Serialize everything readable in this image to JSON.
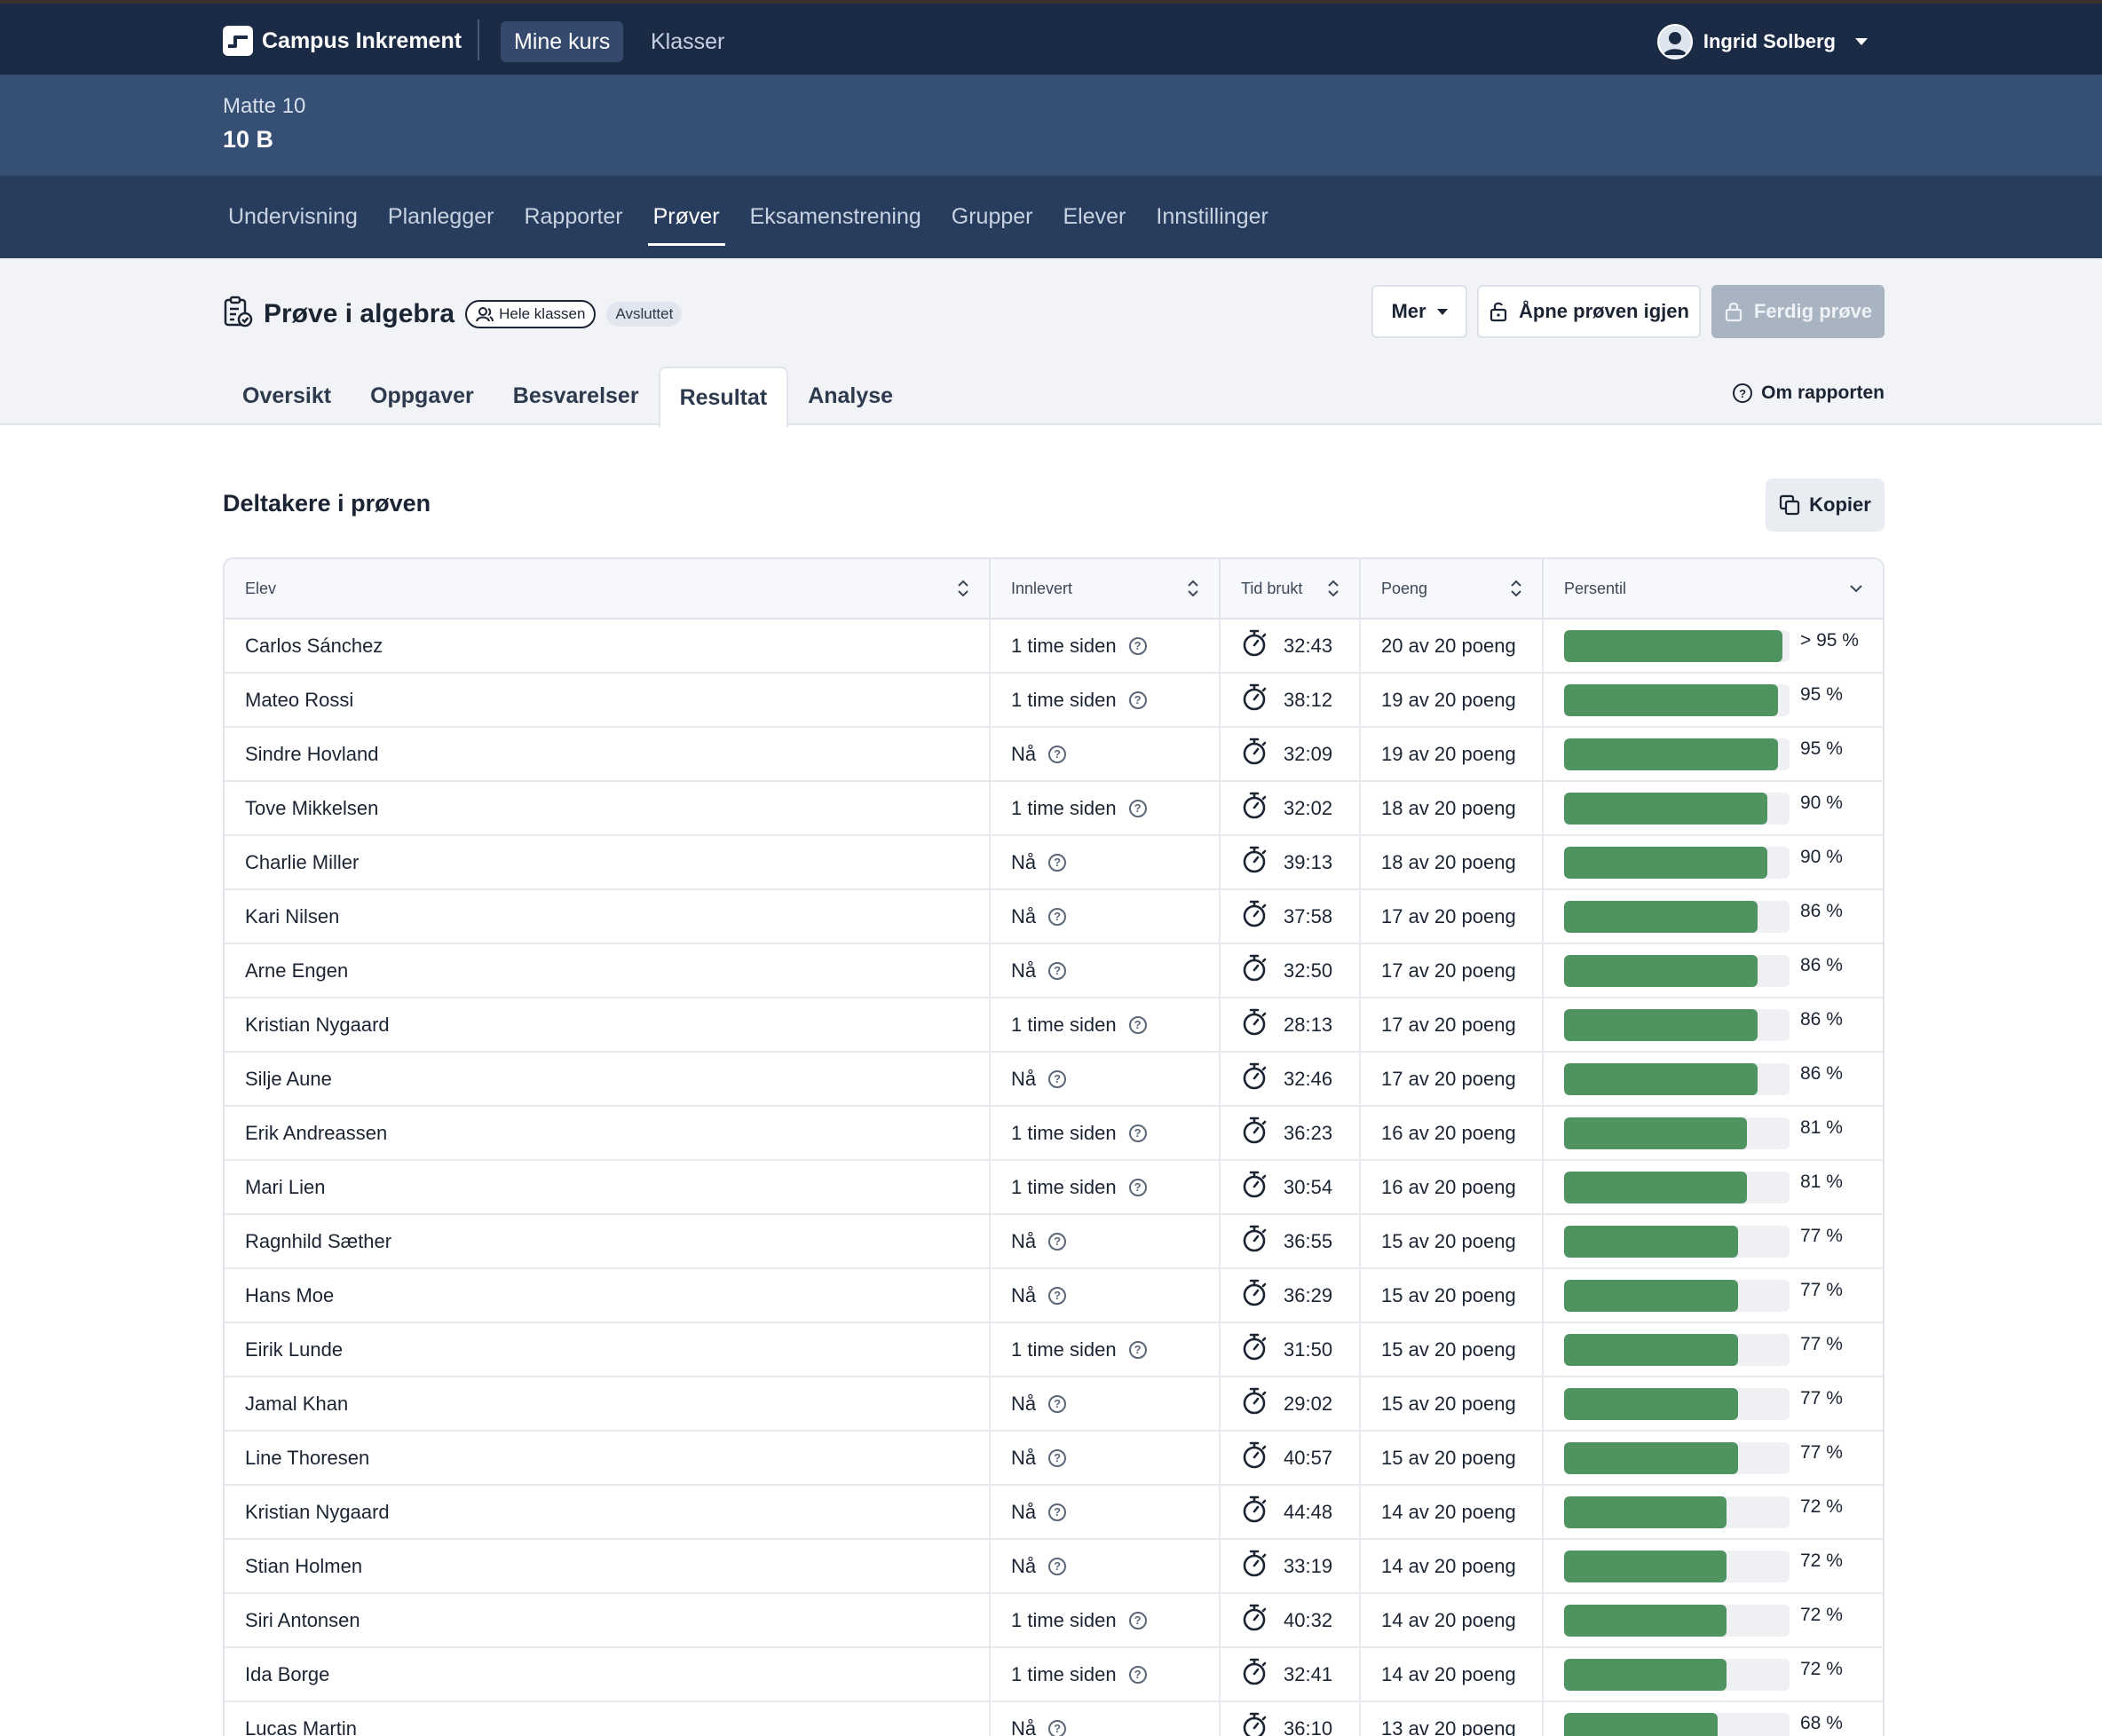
{
  "topbar": {
    "brand": "Campus Inkrement",
    "nav": [
      {
        "label": "Mine kurs",
        "active": true
      },
      {
        "label": "Klasser",
        "active": false
      }
    ],
    "user": "Ingrid Solberg"
  },
  "course": {
    "subject": "Matte 10",
    "class": "10 B"
  },
  "subnav": [
    {
      "label": "Undervisning",
      "active": false
    },
    {
      "label": "Planlegger",
      "active": false
    },
    {
      "label": "Rapporter",
      "active": false
    },
    {
      "label": "Prøver",
      "active": true
    },
    {
      "label": "Eksamenstrening",
      "active": false
    },
    {
      "label": "Grupper",
      "active": false
    },
    {
      "label": "Elever",
      "active": false
    },
    {
      "label": "Innstillinger",
      "active": false
    }
  ],
  "test": {
    "title": "Prøve i algebra",
    "audience_badge": "Hele klassen",
    "status_badge": "Avsluttet",
    "buttons": {
      "mer": "Mer",
      "reopen": "Åpne prøven igjen",
      "finish": "Ferdig prøve"
    },
    "tabs": [
      {
        "label": "Oversikt",
        "active": false
      },
      {
        "label": "Oppgaver",
        "active": false
      },
      {
        "label": "Besvarelser",
        "active": false
      },
      {
        "label": "Resultat",
        "active": true
      },
      {
        "label": "Analyse",
        "active": false
      }
    ],
    "about_report": "Om rapporten"
  },
  "section": {
    "title": "Deltakere i prøven",
    "copy_button": "Kopier"
  },
  "colors": {
    "topbar": "#1b2b46",
    "courseband": "#364f74",
    "subnav": "#283d5e",
    "bar_fill": "#4e9360"
  },
  "table": {
    "columns": [
      "Elev",
      "Innlevert",
      "Tid brukt",
      "Poeng",
      "Persentil"
    ],
    "rows": [
      {
        "name": "Carlos Sánchez",
        "submitted": "1 time siden",
        "time": "32:43",
        "points": "20 av 20 poeng",
        "percentile": 97,
        "percentile_label": "> 95 %"
      },
      {
        "name": "Mateo Rossi",
        "submitted": "1 time siden",
        "time": "38:12",
        "points": "19 av 20 poeng",
        "percentile": 95,
        "percentile_label": "95 %"
      },
      {
        "name": "Sindre Hovland",
        "submitted": "Nå",
        "time": "32:09",
        "points": "19 av 20 poeng",
        "percentile": 95,
        "percentile_label": "95 %"
      },
      {
        "name": "Tove Mikkelsen",
        "submitted": "1 time siden",
        "time": "32:02",
        "points": "18 av 20 poeng",
        "percentile": 90,
        "percentile_label": "90 %"
      },
      {
        "name": "Charlie Miller",
        "submitted": "Nå",
        "time": "39:13",
        "points": "18 av 20 poeng",
        "percentile": 90,
        "percentile_label": "90 %"
      },
      {
        "name": "Kari Nilsen",
        "submitted": "Nå",
        "time": "37:58",
        "points": "17 av 20 poeng",
        "percentile": 86,
        "percentile_label": "86 %"
      },
      {
        "name": "Arne Engen",
        "submitted": "Nå",
        "time": "32:50",
        "points": "17 av 20 poeng",
        "percentile": 86,
        "percentile_label": "86 %"
      },
      {
        "name": "Kristian Nygaard",
        "submitted": "1 time siden",
        "time": "28:13",
        "points": "17 av 20 poeng",
        "percentile": 86,
        "percentile_label": "86 %"
      },
      {
        "name": "Silje Aune",
        "submitted": "Nå",
        "time": "32:46",
        "points": "17 av 20 poeng",
        "percentile": 86,
        "percentile_label": "86 %"
      },
      {
        "name": "Erik Andreassen",
        "submitted": "1 time siden",
        "time": "36:23",
        "points": "16 av 20 poeng",
        "percentile": 81,
        "percentile_label": "81 %"
      },
      {
        "name": "Mari Lien",
        "submitted": "1 time siden",
        "time": "30:54",
        "points": "16 av 20 poeng",
        "percentile": 81,
        "percentile_label": "81 %"
      },
      {
        "name": "Ragnhild Sæther",
        "submitted": "Nå",
        "time": "36:55",
        "points": "15 av 20 poeng",
        "percentile": 77,
        "percentile_label": "77 %"
      },
      {
        "name": "Hans Moe",
        "submitted": "Nå",
        "time": "36:29",
        "points": "15 av 20 poeng",
        "percentile": 77,
        "percentile_label": "77 %"
      },
      {
        "name": "Eirik Lunde",
        "submitted": "1 time siden",
        "time": "31:50",
        "points": "15 av 20 poeng",
        "percentile": 77,
        "percentile_label": "77 %"
      },
      {
        "name": "Jamal Khan",
        "submitted": "Nå",
        "time": "29:02",
        "points": "15 av 20 poeng",
        "percentile": 77,
        "percentile_label": "77 %"
      },
      {
        "name": "Line Thoresen",
        "submitted": "Nå",
        "time": "40:57",
        "points": "15 av 20 poeng",
        "percentile": 77,
        "percentile_label": "77 %"
      },
      {
        "name": "Kristian Nygaard",
        "submitted": "Nå",
        "time": "44:48",
        "points": "14 av 20 poeng",
        "percentile": 72,
        "percentile_label": "72 %"
      },
      {
        "name": "Stian Holmen",
        "submitted": "Nå",
        "time": "33:19",
        "points": "14 av 20 poeng",
        "percentile": 72,
        "percentile_label": "72 %"
      },
      {
        "name": "Siri Antonsen",
        "submitted": "1 time siden",
        "time": "40:32",
        "points": "14 av 20 poeng",
        "percentile": 72,
        "percentile_label": "72 %"
      },
      {
        "name": "Ida Borge",
        "submitted": "1 time siden",
        "time": "32:41",
        "points": "14 av 20 poeng",
        "percentile": 72,
        "percentile_label": "72 %"
      },
      {
        "name": "Lucas Martin",
        "submitted": "Nå",
        "time": "36:10",
        "points": "13 av 20 poeng",
        "percentile": 68,
        "percentile_label": "68 %"
      }
    ]
  }
}
